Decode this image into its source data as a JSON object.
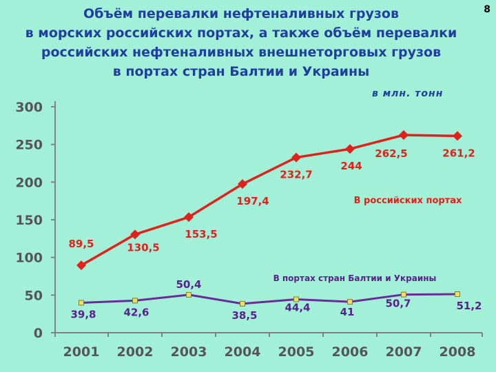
{
  "title_lines": [
    "Объём перевалки нефтеналивных грузов",
    "в морских российских портах, а также объём перевалки",
    "российских нефтеналивных внешнеторговых грузов",
    "в портах стран Балтии и Украины"
  ],
  "slide_number": "8",
  "unit_label": "в млн. тонн",
  "colors": {
    "background": "#a3f0d9",
    "title": "#1f3f9c",
    "series_russia": "#e0221a",
    "series_baltic": "#6a2a9a",
    "baltic_marker": "#e8e06a",
    "axis": "#808080"
  },
  "chart_data": {
    "type": "line",
    "categories": [
      "2001",
      "2002",
      "2003",
      "2004",
      "2005",
      "2006",
      "2007",
      "2008"
    ],
    "ylim": [
      0,
      300
    ],
    "yticks": [
      "0",
      "50",
      "100",
      "150",
      "200",
      "250",
      "300"
    ],
    "grid": false,
    "series": [
      {
        "name": "В российских портах",
        "values": [
          89.5,
          130.5,
          153.5,
          197.4,
          232.7,
          244,
          262.5,
          261.2
        ],
        "labels": [
          "89,5",
          "130,5",
          "153,5",
          "197,4",
          "232,7",
          "244",
          "262,5",
          "261,2"
        ]
      },
      {
        "name": "В портах стран Балтии и Украины",
        "values": [
          39.8,
          42.6,
          50.4,
          38.5,
          44.4,
          41,
          50.7,
          51.2
        ],
        "labels": [
          "39,8",
          "42,6",
          "50,4",
          "38,5",
          "44,4",
          "41",
          "50,7",
          "51,2"
        ]
      }
    ]
  }
}
